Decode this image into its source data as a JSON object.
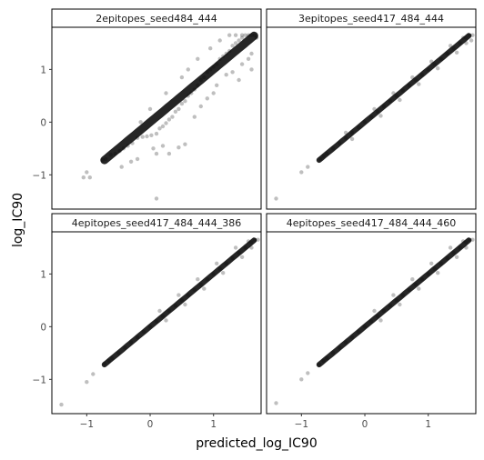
{
  "chart_data": {
    "type": "scatter",
    "xlabel": "predicted_log_IC90",
    "ylabel": "log_IC90",
    "xlim": [
      -1.55,
      1.75
    ],
    "ylim": [
      -1.65,
      1.8
    ],
    "xticks": [
      {
        "v": -1,
        "label": "−1"
      },
      {
        "v": 0,
        "label": "0"
      },
      {
        "v": 1,
        "label": "1"
      }
    ],
    "yticks": [
      {
        "v": -1,
        "label": "−1"
      },
      {
        "v": 0,
        "label": "0"
      },
      {
        "v": 1,
        "label": "1"
      }
    ],
    "grid": false,
    "point_color": "#000000",
    "point_alpha": 0.1,
    "panels": [
      {
        "title": "2epitopes_seed484_444",
        "points": [
          [
            -0.75,
            -0.72
          ],
          [
            -0.7,
            -0.7
          ],
          [
            -0.62,
            -0.62
          ],
          [
            -0.55,
            -0.6
          ],
          [
            -0.48,
            -0.55
          ],
          [
            -0.42,
            -0.5
          ],
          [
            -0.35,
            -0.45
          ],
          [
            -0.28,
            -0.4
          ],
          [
            -0.2,
            -0.3
          ],
          [
            -0.12,
            -0.28
          ],
          [
            -0.05,
            -0.27
          ],
          [
            0.02,
            -0.25
          ],
          [
            0.1,
            -0.22
          ],
          [
            0.15,
            -0.12
          ],
          [
            0.2,
            -0.08
          ],
          [
            0.25,
            -0.02
          ],
          [
            0.3,
            0.05
          ],
          [
            0.35,
            0.1
          ],
          [
            0.4,
            0.2
          ],
          [
            0.45,
            0.25
          ],
          [
            0.5,
            0.35
          ],
          [
            0.55,
            0.4
          ],
          [
            0.6,
            0.5
          ],
          [
            0.65,
            0.55
          ],
          [
            0.7,
            0.62
          ],
          [
            0.75,
            0.7
          ],
          [
            0.8,
            0.8
          ],
          [
            0.85,
            0.85
          ],
          [
            0.9,
            0.95
          ],
          [
            0.95,
            1.0
          ],
          [
            1.0,
            1.05
          ],
          [
            1.05,
            1.1
          ],
          [
            1.1,
            1.2
          ],
          [
            1.15,
            1.25
          ],
          [
            1.2,
            1.3
          ],
          [
            1.25,
            1.35
          ],
          [
            1.3,
            1.45
          ],
          [
            1.35,
            1.5
          ],
          [
            1.4,
            1.55
          ],
          [
            1.45,
            1.6
          ],
          [
            1.5,
            1.65
          ],
          [
            1.55,
            1.65
          ],
          [
            1.6,
            1.65
          ],
          [
            1.65,
            1.65
          ],
          [
            1.68,
            1.6
          ],
          [
            -1.0,
            -0.95
          ],
          [
            -1.05,
            -1.05
          ],
          [
            -0.95,
            -1.05
          ],
          [
            -0.45,
            -0.85
          ],
          [
            -0.3,
            -0.75
          ],
          [
            -0.2,
            -0.7
          ],
          [
            0.05,
            -0.5
          ],
          [
            0.2,
            -0.45
          ],
          [
            0.45,
            -0.48
          ],
          [
            0.55,
            -0.42
          ],
          [
            0.1,
            -0.6
          ],
          [
            0.7,
            0.1
          ],
          [
            0.9,
            0.45
          ],
          [
            1.05,
            0.7
          ],
          [
            1.2,
            0.9
          ],
          [
            1.3,
            0.95
          ],
          [
            1.45,
            1.1
          ],
          [
            1.55,
            1.2
          ],
          [
            1.6,
            1.3
          ],
          [
            0.1,
            -1.45
          ],
          [
            -0.15,
            0.0
          ],
          [
            0.0,
            0.25
          ],
          [
            0.25,
            0.55
          ],
          [
            0.5,
            0.85
          ],
          [
            0.6,
            1.0
          ],
          [
            0.75,
            1.2
          ],
          [
            0.95,
            1.4
          ],
          [
            1.1,
            1.55
          ],
          [
            1.25,
            1.65
          ],
          [
            1.35,
            1.65
          ],
          [
            1.45,
            1.65
          ],
          [
            0.3,
            -0.6
          ],
          [
            0.8,
            0.3
          ],
          [
            1.0,
            0.55
          ],
          [
            1.4,
            0.8
          ],
          [
            1.6,
            1.0
          ]
        ]
      },
      {
        "title": "3epitopes_seed417_484_444",
        "points": [
          [
            -0.7,
            -0.7
          ],
          [
            -0.65,
            -0.65
          ],
          [
            -0.6,
            -0.6
          ],
          [
            -0.5,
            -0.5
          ],
          [
            -0.4,
            -0.4
          ],
          [
            -0.3,
            -0.3
          ],
          [
            -0.2,
            -0.2
          ],
          [
            -0.1,
            -0.1
          ],
          [
            0.0,
            0.0
          ],
          [
            0.1,
            0.1
          ],
          [
            0.2,
            0.2
          ],
          [
            0.3,
            0.3
          ],
          [
            0.4,
            0.4
          ],
          [
            0.5,
            0.5
          ],
          [
            0.6,
            0.6
          ],
          [
            0.7,
            0.7
          ],
          [
            0.8,
            0.8
          ],
          [
            0.9,
            0.9
          ],
          [
            1.0,
            1.0
          ],
          [
            1.1,
            1.1
          ],
          [
            1.2,
            1.2
          ],
          [
            1.3,
            1.3
          ],
          [
            1.4,
            1.4
          ],
          [
            1.5,
            1.5
          ],
          [
            1.6,
            1.6
          ],
          [
            1.65,
            1.65
          ],
          [
            1.7,
            1.65
          ],
          [
            -0.9,
            -0.85
          ],
          [
            -1.0,
            -0.95
          ],
          [
            -1.4,
            -1.45
          ],
          [
            -0.3,
            -0.2
          ],
          [
            -0.2,
            -0.32
          ],
          [
            0.15,
            0.25
          ],
          [
            0.25,
            0.12
          ],
          [
            0.45,
            0.55
          ],
          [
            0.55,
            0.42
          ],
          [
            0.75,
            0.85
          ],
          [
            0.85,
            0.72
          ],
          [
            1.05,
            1.15
          ],
          [
            1.15,
            1.02
          ],
          [
            1.35,
            1.45
          ],
          [
            1.45,
            1.32
          ],
          [
            1.55,
            1.6
          ],
          [
            1.6,
            1.5
          ],
          [
            1.68,
            1.55
          ]
        ]
      },
      {
        "title": "4epitopes_seed417_484_444_386",
        "points": [
          [
            -0.72,
            -0.7
          ],
          [
            -0.65,
            -0.65
          ],
          [
            -0.6,
            -0.6
          ],
          [
            -0.5,
            -0.5
          ],
          [
            -0.4,
            -0.4
          ],
          [
            -0.3,
            -0.3
          ],
          [
            -0.2,
            -0.2
          ],
          [
            -0.1,
            -0.1
          ],
          [
            0.0,
            0.0
          ],
          [
            0.1,
            0.1
          ],
          [
            0.2,
            0.2
          ],
          [
            0.3,
            0.3
          ],
          [
            0.4,
            0.4
          ],
          [
            0.5,
            0.5
          ],
          [
            0.6,
            0.6
          ],
          [
            0.7,
            0.7
          ],
          [
            0.8,
            0.8
          ],
          [
            0.9,
            0.9
          ],
          [
            1.0,
            1.0
          ],
          [
            1.1,
            1.1
          ],
          [
            1.2,
            1.2
          ],
          [
            1.3,
            1.3
          ],
          [
            1.4,
            1.4
          ],
          [
            1.5,
            1.5
          ],
          [
            1.6,
            1.6
          ],
          [
            1.65,
            1.65
          ],
          [
            1.7,
            1.65
          ],
          [
            -1.0,
            -1.05
          ],
          [
            -0.9,
            -0.9
          ],
          [
            -1.4,
            -1.48
          ],
          [
            0.15,
            0.3
          ],
          [
            0.25,
            0.12
          ],
          [
            0.45,
            0.6
          ],
          [
            0.55,
            0.42
          ],
          [
            0.75,
            0.9
          ],
          [
            0.85,
            0.72
          ],
          [
            1.05,
            1.2
          ],
          [
            1.15,
            1.02
          ],
          [
            1.35,
            1.5
          ],
          [
            1.45,
            1.32
          ],
          [
            1.55,
            1.62
          ],
          [
            1.6,
            1.5
          ]
        ]
      },
      {
        "title": "4epitopes_seed417_484_444_460",
        "points": [
          [
            -0.72,
            -0.72
          ],
          [
            -0.65,
            -0.65
          ],
          [
            -0.6,
            -0.6
          ],
          [
            -0.5,
            -0.5
          ],
          [
            -0.4,
            -0.4
          ],
          [
            -0.3,
            -0.3
          ],
          [
            -0.2,
            -0.2
          ],
          [
            -0.1,
            -0.1
          ],
          [
            0.0,
            0.0
          ],
          [
            0.1,
            0.1
          ],
          [
            0.2,
            0.2
          ],
          [
            0.3,
            0.3
          ],
          [
            0.4,
            0.4
          ],
          [
            0.5,
            0.5
          ],
          [
            0.6,
            0.6
          ],
          [
            0.7,
            0.7
          ],
          [
            0.8,
            0.8
          ],
          [
            0.9,
            0.9
          ],
          [
            1.0,
            1.0
          ],
          [
            1.1,
            1.1
          ],
          [
            1.2,
            1.2
          ],
          [
            1.3,
            1.3
          ],
          [
            1.4,
            1.4
          ],
          [
            1.5,
            1.5
          ],
          [
            1.6,
            1.6
          ],
          [
            1.65,
            1.65
          ],
          [
            1.7,
            1.65
          ],
          [
            -1.0,
            -1.0
          ],
          [
            -0.9,
            -0.88
          ],
          [
            -1.4,
            -1.45
          ],
          [
            0.15,
            0.3
          ],
          [
            0.25,
            0.12
          ],
          [
            0.45,
            0.6
          ],
          [
            0.55,
            0.42
          ],
          [
            0.75,
            0.9
          ],
          [
            0.85,
            0.72
          ],
          [
            1.05,
            1.2
          ],
          [
            1.15,
            1.02
          ],
          [
            1.35,
            1.5
          ],
          [
            1.45,
            1.32
          ],
          [
            1.55,
            1.62
          ],
          [
            1.6,
            1.5
          ]
        ]
      }
    ]
  }
}
